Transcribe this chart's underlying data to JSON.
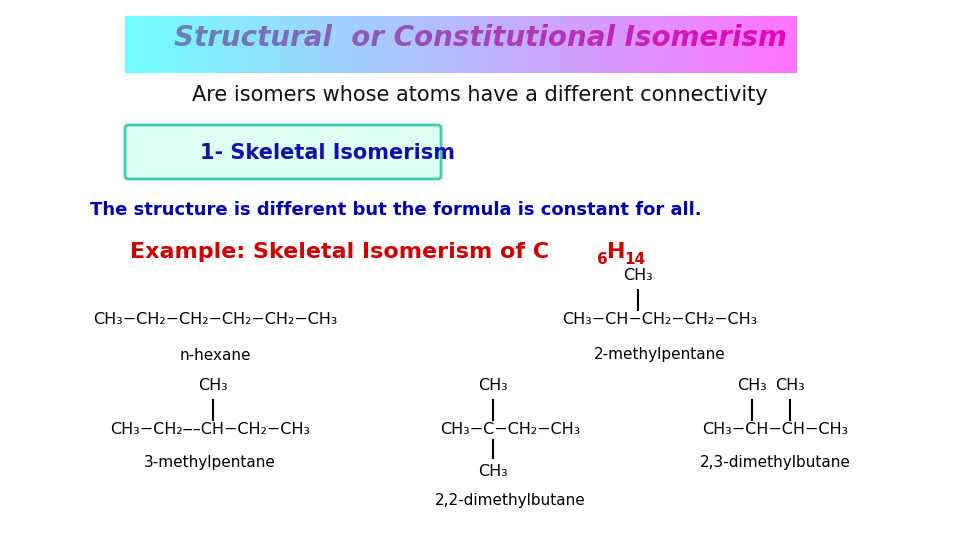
{
  "title": "Structural  or Constitutional Isomerism",
  "title_color": "#CC0066",
  "title_bg_color_center": "#AAFFEE",
  "title_bg_color_edge": "#FFFFFF",
  "subtitle": "Are isomers whose atoms have a different connectivity",
  "subtitle_color": "#111111",
  "box_label": "1- Skeletal Isomerism",
  "box_label_color": "#1111AA",
  "box_bg_color": "#DDFFF5",
  "box_border_color": "#44CCAA",
  "description": "The structure is different but the formula is constant for all.",
  "description_color": "#0000AA",
  "example_color": "#CC0000",
  "bg_color": "#FFFFFF",
  "sc": "#000000",
  "fig_w": 9.6,
  "fig_h": 5.4,
  "dpi": 100
}
